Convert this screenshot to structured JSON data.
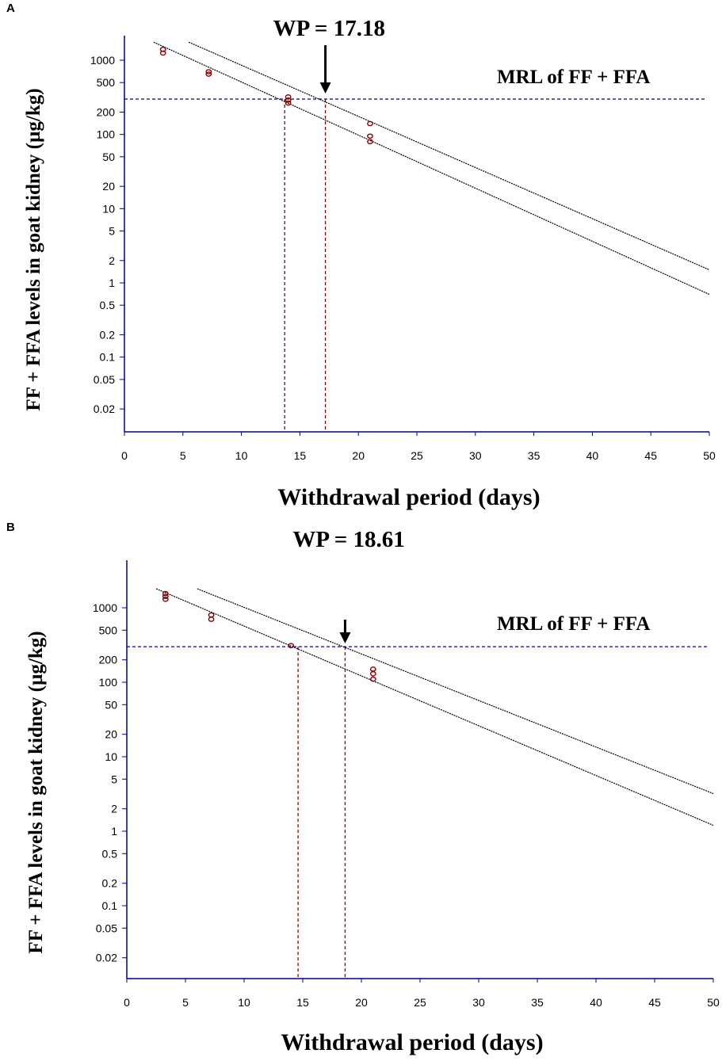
{
  "chart_data": [
    {
      "panel": "A",
      "type": "scatter",
      "scale_y": "log",
      "xlabel": "Withdrawal period (days)",
      "ylabel": "FF + FFA levels in goat kidney (µg/kg)",
      "x_ticks": [
        0,
        5,
        10,
        15,
        20,
        25,
        30,
        35,
        40,
        45,
        50
      ],
      "y_ticks": [
        1000,
        500,
        200,
        100,
        50,
        20,
        10,
        5,
        2,
        1,
        0.5,
        0.2,
        0.1,
        0.05,
        0.02
      ],
      "xlim": [
        0,
        50
      ],
      "ylim": [
        0.01,
        2500
      ],
      "annotation": "WP = 17.18",
      "wp": 17.18,
      "mrl_label": "MRL of FF + FFA",
      "mrl": 300,
      "regression_x": 13.7,
      "points": [
        {
          "x": 3.3,
          "y": 1400
        },
        {
          "x": 3.3,
          "y": 1250
        },
        {
          "x": 7.2,
          "y": 700
        },
        {
          "x": 7.2,
          "y": 650
        },
        {
          "x": 14,
          "y": 320
        },
        {
          "x": 14,
          "y": 290
        },
        {
          "x": 14,
          "y": 265
        },
        {
          "x": 21,
          "y": 140
        },
        {
          "x": 21,
          "y": 95
        },
        {
          "x": 21,
          "y": 80
        }
      ],
      "lines": [
        {
          "name": "regression",
          "x": [
            2.5,
            50
          ],
          "y": [
            1750,
            0.7
          ]
        },
        {
          "name": "upper tolerance limit",
          "x": [
            5.5,
            50
          ],
          "y": [
            1750,
            1.5
          ]
        }
      ]
    },
    {
      "panel": "B",
      "type": "scatter",
      "scale_y": "log",
      "xlabel": "Withdrawal period (days)",
      "ylabel": "FF + FFA levels in goat kidney (µg/kg)",
      "x_ticks": [
        0,
        5,
        10,
        15,
        20,
        25,
        30,
        35,
        40,
        45,
        50
      ],
      "y_ticks": [
        1000,
        500,
        200,
        100,
        50,
        20,
        10,
        5,
        2,
        1,
        0.5,
        0.2,
        0.1,
        0.05,
        0.02
      ],
      "xlim": [
        0,
        50
      ],
      "ylim": [
        0.01,
        2500
      ],
      "annotation": "WP = 18.61",
      "wp": 18.61,
      "mrl_label": "MRL of FF + FFA",
      "mrl": 300,
      "regression_x": 14.6,
      "points": [
        {
          "x": 3.3,
          "y": 1550
        },
        {
          "x": 3.3,
          "y": 1420
        },
        {
          "x": 3.3,
          "y": 1300
        },
        {
          "x": 7.2,
          "y": 800
        },
        {
          "x": 7.2,
          "y": 700
        },
        {
          "x": 14,
          "y": 310
        },
        {
          "x": 21,
          "y": 150
        },
        {
          "x": 21,
          "y": 130
        },
        {
          "x": 21,
          "y": 110
        }
      ],
      "lines": [
        {
          "name": "regression",
          "x": [
            2.5,
            50
          ],
          "y": [
            1800,
            1.2
          ]
        },
        {
          "name": "upper tolerance limit",
          "x": [
            6,
            50
          ],
          "y": [
            1800,
            3.2
          ]
        }
      ]
    }
  ],
  "panels": {
    "A": {
      "letter": "A"
    },
    "B": {
      "letter": "B"
    }
  },
  "colors": {
    "axis": "#00008b",
    "mrl_line": "#00008b",
    "wp_line": "#8b0000",
    "points": "#8b0000",
    "regression": "#000000"
  }
}
